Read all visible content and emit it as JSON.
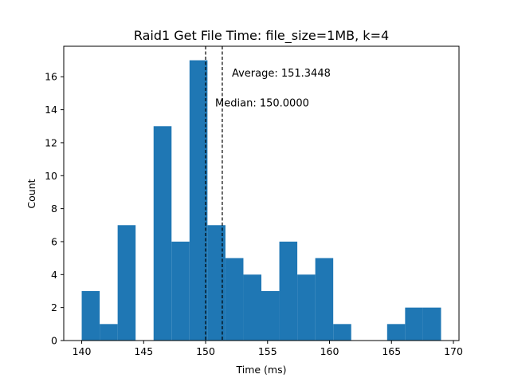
{
  "chart_data": {
    "type": "bar",
    "title": "Raid1 Get File Time: file_size=1MB, k=4",
    "xlabel": "Time (ms)",
    "ylabel": "Count",
    "xlim": [
      138.55,
      170.45
    ],
    "ylim": [
      0,
      17.85
    ],
    "x_ticks": [
      140,
      145,
      150,
      155,
      160,
      165,
      170
    ],
    "y_ticks": [
      0,
      2,
      4,
      6,
      8,
      10,
      12,
      14,
      16
    ],
    "bar_color": "#1f77b4",
    "bins": [
      {
        "start": 140.0,
        "end": 141.45,
        "count": 3
      },
      {
        "start": 141.45,
        "end": 142.9,
        "count": 1
      },
      {
        "start": 142.9,
        "end": 144.35,
        "count": 7
      },
      {
        "start": 144.35,
        "end": 145.8,
        "count": 0
      },
      {
        "start": 145.8,
        "end": 147.25,
        "count": 13
      },
      {
        "start": 147.25,
        "end": 148.7,
        "count": 6
      },
      {
        "start": 148.7,
        "end": 150.15,
        "count": 17
      },
      {
        "start": 150.15,
        "end": 151.6,
        "count": 7
      },
      {
        "start": 151.6,
        "end": 153.05,
        "count": 5
      },
      {
        "start": 153.05,
        "end": 154.5,
        "count": 4
      },
      {
        "start": 154.5,
        "end": 155.95,
        "count": 3
      },
      {
        "start": 155.95,
        "end": 157.4,
        "count": 6
      },
      {
        "start": 157.4,
        "end": 158.85,
        "count": 4
      },
      {
        "start": 158.85,
        "end": 160.3,
        "count": 5
      },
      {
        "start": 160.3,
        "end": 161.75,
        "count": 1
      },
      {
        "start": 161.75,
        "end": 163.2,
        "count": 0
      },
      {
        "start": 163.2,
        "end": 164.65,
        "count": 0
      },
      {
        "start": 164.65,
        "end": 166.1,
        "count": 1
      },
      {
        "start": 166.1,
        "end": 167.55,
        "count": 2
      },
      {
        "start": 167.55,
        "end": 169.0,
        "count": 2
      }
    ],
    "annotations": [
      {
        "name": "median",
        "label": "Median: 150.0000",
        "value": 150.0,
        "line_style": "dashed"
      },
      {
        "name": "average",
        "label": "Average: 151.3448",
        "value": 151.3448,
        "line_style": "dashed"
      }
    ],
    "grid": false,
    "legend": false
  }
}
